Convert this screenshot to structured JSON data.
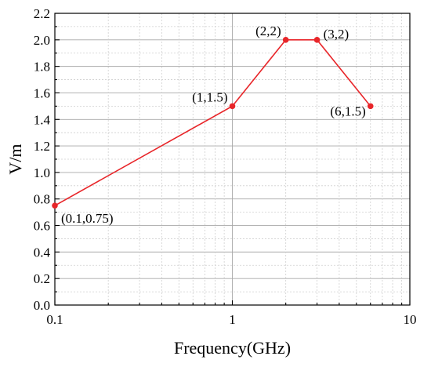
{
  "chart_data": {
    "type": "line",
    "title": "",
    "xlabel": "Frequency(GHz)",
    "ylabel": "V/m",
    "xscale": "log",
    "xlim": [
      0.1,
      10
    ],
    "ylim": [
      0.0,
      2.2
    ],
    "x_ticks": [
      0.1,
      1,
      10
    ],
    "x_tick_labels": [
      "0.1",
      "1",
      "10"
    ],
    "y_ticks": [
      0.0,
      0.2,
      0.4,
      0.6,
      0.8,
      1.0,
      1.2,
      1.4,
      1.6,
      1.8,
      2.0,
      2.2
    ],
    "y_tick_labels": [
      "0.0",
      "0.2",
      "0.4",
      "0.6",
      "0.8",
      "1.0",
      "1.2",
      "1.4",
      "1.6",
      "1.8",
      "2.0",
      "2.2"
    ],
    "grid": true,
    "series": [
      {
        "color": "#e8262a",
        "x": [
          0.1,
          1,
          2,
          3,
          6
        ],
        "y": [
          0.75,
          1.5,
          2,
          2,
          1.5
        ]
      }
    ],
    "annotations": [
      {
        "text": "(0.1,0.75)",
        "x": 0.1,
        "y": 0.75,
        "anchor": "below-right"
      },
      {
        "text": "(1,1.5)",
        "x": 1,
        "y": 1.5,
        "anchor": "upper-left"
      },
      {
        "text": "(2,2)",
        "x": 2,
        "y": 2,
        "anchor": "upper-left"
      },
      {
        "text": "(3,2)",
        "x": 3,
        "y": 2,
        "anchor": "right"
      },
      {
        "text": "(6,1.5)",
        "x": 6,
        "y": 1.5,
        "anchor": "left"
      }
    ]
  }
}
